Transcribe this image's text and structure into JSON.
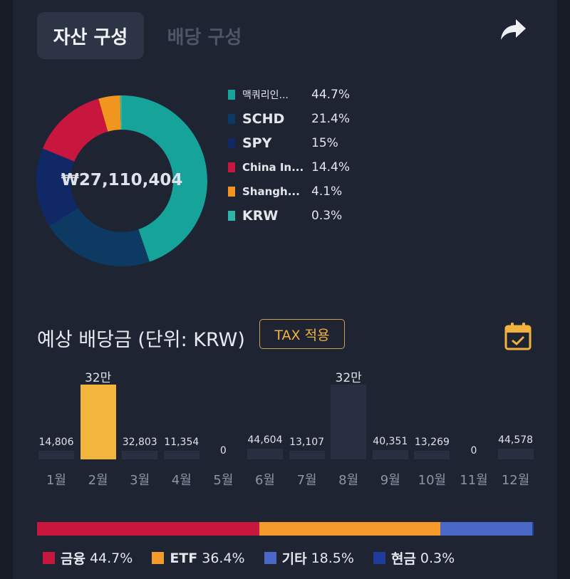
{
  "tabs": {
    "asset": "자산 구성",
    "dividend": "배당 구성"
  },
  "share_icon": "share-arrow-icon",
  "portfolio": {
    "total": "₩27,110,404",
    "holdings": [
      {
        "name": "맥쿼리인...",
        "pct_label": "44.7%",
        "pct": 44.7,
        "color": "#16a39a"
      },
      {
        "name": "SCHD",
        "pct_label": "21.4%",
        "pct": 21.4,
        "color": "#0d3a63"
      },
      {
        "name": "SPY",
        "pct_label": "15%",
        "pct": 15.0,
        "color": "#112867"
      },
      {
        "name": "China In...",
        "pct_label": "14.4%",
        "pct": 14.4,
        "color": "#c8173f"
      },
      {
        "name": "Shangh...",
        "pct_label": "4.1%",
        "pct": 4.1,
        "color": "#f0951d"
      },
      {
        "name": "KRW",
        "pct_label": "0.3%",
        "pct": 0.3,
        "color": "#2eb5a8"
      }
    ]
  },
  "dividends": {
    "title": "예상 배당금 (단위: KRW)",
    "tax_button": "TAX 적용",
    "calendar_icon": "calendar-check-icon",
    "months": [
      {
        "month": "1월",
        "label": "14,806",
        "value": 14806,
        "highlight": false
      },
      {
        "month": "2월",
        "label": "32만",
        "value": 320000,
        "highlight": true
      },
      {
        "month": "3월",
        "label": "32,803",
        "value": 32803,
        "highlight": false
      },
      {
        "month": "4월",
        "label": "11,354",
        "value": 11354,
        "highlight": false
      },
      {
        "month": "5월",
        "label": "0",
        "value": 0,
        "highlight": false
      },
      {
        "month": "6월",
        "label": "44,604",
        "value": 44604,
        "highlight": false
      },
      {
        "month": "7월",
        "label": "13,107",
        "value": 13107,
        "highlight": false
      },
      {
        "month": "8월",
        "label": "32만",
        "value": 320000,
        "highlight": false
      },
      {
        "month": "9월",
        "label": "40,351",
        "value": 40351,
        "highlight": false
      },
      {
        "month": "10월",
        "label": "13,269",
        "value": 13269,
        "highlight": false
      },
      {
        "month": "11월",
        "label": "0",
        "value": 0,
        "highlight": false
      },
      {
        "month": "12월",
        "label": "44,578",
        "value": 44578,
        "highlight": false
      }
    ]
  },
  "categories": [
    {
      "name": "금융",
      "pct_label": "44.7%",
      "pct": 44.7,
      "color": "#c8173f"
    },
    {
      "name": "ETF",
      "pct_label": "36.4%",
      "pct": 36.4,
      "color": "#f59b2b"
    },
    {
      "name": "기타",
      "pct_label": "18.5%",
      "pct": 18.5,
      "color": "#4a68c6"
    },
    {
      "name": "현금",
      "pct_label": "0.3%",
      "pct": 0.3,
      "color": "#1e3b9e"
    }
  ]
}
